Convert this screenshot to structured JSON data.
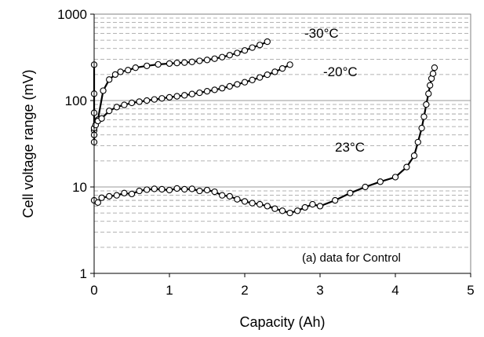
{
  "chart_data": {
    "type": "scatter",
    "xlabel": "Capacity (Ah)",
    "ylabel": "Cell voltage range (mV)",
    "xlim": [
      0,
      5
    ],
    "ylim": [
      1,
      1000
    ],
    "yscale": "log",
    "x_ticks": [
      "0",
      "1",
      "2",
      "3",
      "4",
      "5"
    ],
    "y_ticks": [
      "1",
      "10",
      "100",
      "1000"
    ],
    "grid": "horizontal major solid, minor dashed",
    "annotations": {
      "note": "(a) data for Control"
    },
    "series": [
      {
        "label": "-30°C",
        "x": [
          0,
          0,
          0,
          0,
          0.05,
          0.12,
          0.2,
          0.28,
          0.35,
          0.45,
          0.55,
          0.7,
          0.85,
          1.0,
          1.1,
          1.2,
          1.3,
          1.4,
          1.5,
          1.6,
          1.7,
          1.8,
          1.9,
          2.0,
          2.1,
          2.2,
          2.3
        ],
        "y": [
          260,
          120,
          72,
          45,
          60,
          130,
          175,
          200,
          215,
          225,
          240,
          252,
          262,
          268,
          272,
          275,
          280,
          288,
          295,
          305,
          318,
          335,
          355,
          380,
          410,
          440,
          480
        ]
      },
      {
        "label": "-20°C",
        "x": [
          0,
          0,
          0,
          0.02,
          0.05,
          0.1,
          0.2,
          0.3,
          0.4,
          0.5,
          0.6,
          0.7,
          0.8,
          0.9,
          1.0,
          1.1,
          1.2,
          1.3,
          1.4,
          1.5,
          1.6,
          1.7,
          1.8,
          1.9,
          2.0,
          2.1,
          2.2,
          2.3,
          2.4,
          2.5,
          2.6
        ],
        "y": [
          33,
          40,
          48,
          52,
          58,
          62,
          76,
          84,
          89,
          94,
          97,
          100,
          103,
          106,
          109,
          112,
          115,
          119,
          123,
          128,
          133,
          139,
          146,
          154,
          163,
          173,
          185,
          199,
          215,
          235,
          260
        ]
      },
      {
        "label": "23°C",
        "x": [
          0,
          0.05,
          0.1,
          0.2,
          0.3,
          0.4,
          0.5,
          0.6,
          0.7,
          0.8,
          0.9,
          1.0,
          1.1,
          1.2,
          1.3,
          1.4,
          1.5,
          1.6,
          1.7,
          1.8,
          1.9,
          2.0,
          2.1,
          2.2,
          2.3,
          2.4,
          2.5,
          2.6,
          2.7,
          2.8,
          2.9,
          3.0,
          3.2,
          3.4,
          3.6,
          3.8,
          4.0,
          4.15,
          4.25,
          4.3,
          4.35,
          4.38,
          4.41,
          4.44,
          4.46,
          4.48,
          4.5,
          4.52
        ],
        "y": [
          7.0,
          6.6,
          7.5,
          7.8,
          8.0,
          8.5,
          8.3,
          9.0,
          9.3,
          9.5,
          9.4,
          9.2,
          9.6,
          9.4,
          9.5,
          9.0,
          9.2,
          8.8,
          8.0,
          7.8,
          7.2,
          6.8,
          6.5,
          6.3,
          6.0,
          5.6,
          5.3,
          5.0,
          5.3,
          5.8,
          6.3,
          6.0,
          7.0,
          8.5,
          10.0,
          11.5,
          13.0,
          17.0,
          23.0,
          33.0,
          48.0,
          65.0,
          90.0,
          120.0,
          150.0,
          180.0,
          205.0,
          240.0
        ]
      }
    ]
  }
}
